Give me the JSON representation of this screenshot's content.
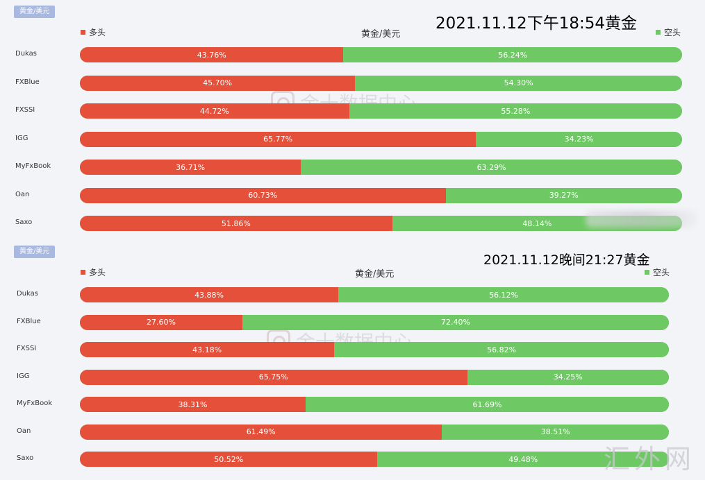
{
  "site_mark": "汇外网",
  "watermark": "金十数据中心",
  "colors": {
    "long": "#e4503a",
    "short": "#6ec964"
  },
  "chart_data": [
    {
      "type": "bar",
      "tag": "黄金/美元",
      "title": "黄金/美元",
      "stamp": "2021.11.12下午18:54黄金",
      "legend": {
        "long": "多头",
        "short": "空头"
      },
      "categories": [
        "Dukas",
        "FXBlue",
        "FXSSI",
        "IGG",
        "MyFxBook",
        "Oan",
        "Saxo"
      ],
      "series": [
        {
          "name": "多头",
          "values": [
            43.76,
            45.7,
            44.72,
            65.77,
            36.71,
            60.73,
            51.86
          ],
          "labels": [
            "43.76%",
            "45.70%",
            "44.72%",
            "65.77%",
            "36.71%",
            "60.73%",
            "51.86%"
          ]
        },
        {
          "name": "空头",
          "values": [
            56.24,
            54.3,
            55.28,
            34.23,
            63.29,
            39.27,
            48.14
          ],
          "labels": [
            "56.24%",
            "54.30%",
            "55.28%",
            "34.23%",
            "63.29%",
            "39.27%",
            "48.14%"
          ]
        }
      ]
    },
    {
      "type": "bar",
      "tag": "黄金/美元",
      "title": "黄金/美元",
      "stamp": "2021.11.12晚间21:27黄金",
      "legend": {
        "long": "多头",
        "short": "空头"
      },
      "categories": [
        "Dukas",
        "FXBlue",
        "FXSSI",
        "IGG",
        "MyFxBook",
        "Oan",
        "Saxo"
      ],
      "series": [
        {
          "name": "多头",
          "values": [
            43.88,
            27.6,
            43.18,
            65.75,
            38.31,
            61.49,
            50.52
          ],
          "labels": [
            "43.88%",
            "27.60%",
            "43.18%",
            "65.75%",
            "38.31%",
            "61.49%",
            "50.52%"
          ]
        },
        {
          "name": "空头",
          "values": [
            56.12,
            72.4,
            56.82,
            34.25,
            61.69,
            38.51,
            49.48
          ],
          "labels": [
            "56.12%",
            "72.40%",
            "56.82%",
            "34.25%",
            "61.69%",
            "38.51%",
            "49.48%"
          ]
        }
      ]
    }
  ]
}
